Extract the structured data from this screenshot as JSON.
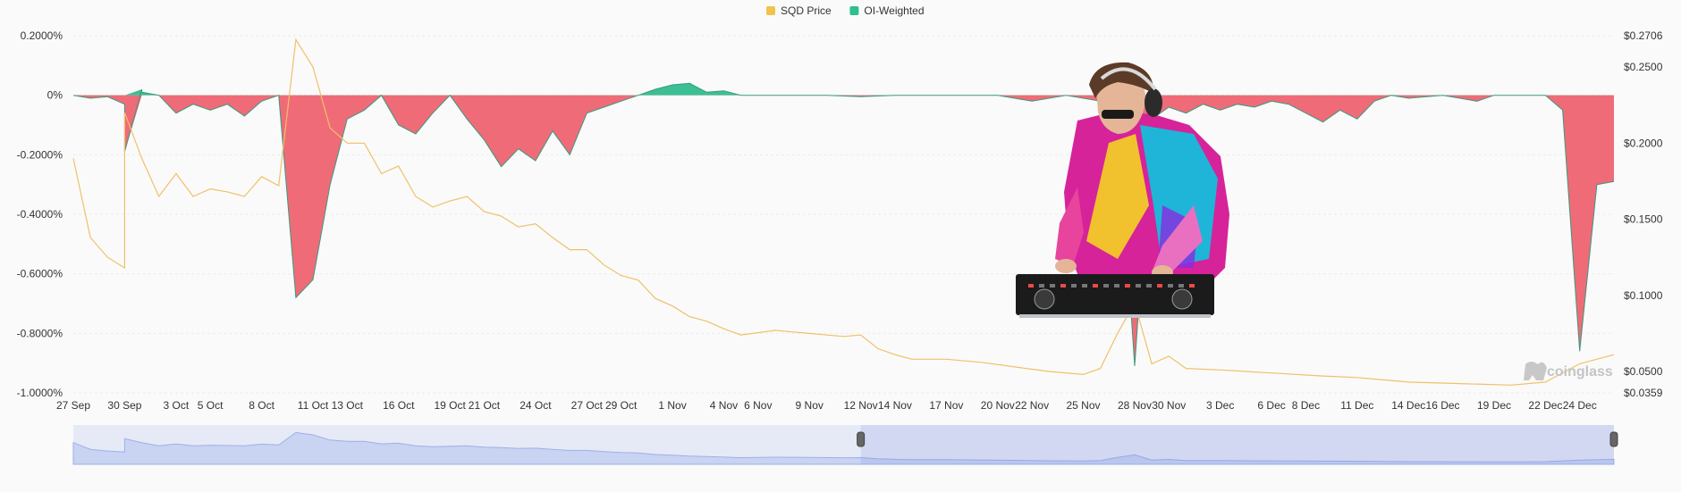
{
  "chart_data": {
    "type": "line",
    "legend": {
      "position": "top-center",
      "items": [
        {
          "label": "SQD Price",
          "color": "#f0c34d",
          "kind": "line"
        },
        {
          "label": "OI-Weighted",
          "color": "#2fbf8f",
          "kind": "area"
        }
      ]
    },
    "negative_color": "#f06b78",
    "positive_color": "#3cbf94",
    "price_color": "#efc16a",
    "y_left": {
      "ticks": [
        0.2,
        0,
        -0.2,
        -0.4,
        -0.6,
        -0.8,
        -1.0
      ],
      "tick_labels": [
        "0.2000%",
        "0%",
        "-0.2000%",
        "-0.4000%",
        "-0.6000%",
        "-0.8000%",
        "-1.0000%"
      ],
      "min": -1.0,
      "max": 0.2
    },
    "y_right": {
      "ticks": [
        0.2706,
        0.25,
        0.2,
        0.15,
        0.1,
        0.05,
        0.0359
      ],
      "tick_labels": [
        "$0.2706",
        "$0.2500",
        "$0.2000",
        "$0.1500",
        "$0.1000",
        "$0.0500",
        "$0.0359"
      ],
      "min": 0.0359,
      "max": 0.2706
    },
    "x": {
      "start": "2024-09-27",
      "end": "2024-12-26",
      "tick_dates": [
        "2024-09-27",
        "2024-09-30",
        "2024-10-03",
        "2024-10-05",
        "2024-10-08",
        "2024-10-11",
        "2024-10-13",
        "2024-10-16",
        "2024-10-19",
        "2024-10-21",
        "2024-10-24",
        "2024-10-27",
        "2024-10-29",
        "2024-11-01",
        "2024-11-04",
        "2024-11-06",
        "2024-11-09",
        "2024-11-12",
        "2024-11-14",
        "2024-11-17",
        "2024-11-20",
        "2024-11-22",
        "2024-11-25",
        "2024-11-28",
        "2024-11-30",
        "2024-12-03",
        "2024-12-06",
        "2024-12-08",
        "2024-12-11",
        "2024-12-14",
        "2024-12-16",
        "2024-12-19",
        "2024-12-22",
        "2024-12-24"
      ],
      "tick_labels": [
        "27 Sep",
        "30 Sep",
        "3 Oct",
        "5 Oct",
        "8 Oct",
        "11 Oct",
        "13 Oct",
        "16 Oct",
        "19 Oct",
        "21 Oct",
        "24 Oct",
        "27 Oct",
        "29 Oct",
        "1 Nov",
        "4 Nov",
        "6 Nov",
        "9 Nov",
        "12 Nov",
        "14 Nov",
        "17 Nov",
        "20 Nov",
        "22 Nov",
        "25 Nov",
        "28 Nov",
        "30 Nov",
        "3 Dec",
        "6 Dec",
        "8 Dec",
        "11 Dec",
        "14 Dec",
        "16 Dec",
        "19 Dec",
        "22 Dec",
        "24 Dec"
      ]
    },
    "series": [
      {
        "name": "OI-Weighted",
        "points": [
          [
            "2024-09-27",
            0
          ],
          [
            "2024-09-28",
            -0.01
          ],
          [
            "2024-09-29",
            -0.005
          ],
          [
            "2024-09-30",
            -0.03
          ],
          [
            "2024-09-30",
            -0.19
          ],
          [
            "2024-10-01",
            0.02
          ],
          [
            "2024-10-01",
            0.01
          ],
          [
            "2024-10-02",
            0
          ],
          [
            "2024-10-03",
            -0.06
          ],
          [
            "2024-10-04",
            -0.03
          ],
          [
            "2024-10-05",
            -0.05
          ],
          [
            "2024-10-06",
            -0.03
          ],
          [
            "2024-10-07",
            -0.07
          ],
          [
            "2024-10-08",
            -0.02
          ],
          [
            "2024-10-09",
            0
          ],
          [
            "2024-10-10",
            -0.68
          ],
          [
            "2024-10-11",
            -0.62
          ],
          [
            "2024-10-12",
            -0.3
          ],
          [
            "2024-10-13",
            -0.08
          ],
          [
            "2024-10-14",
            -0.05
          ],
          [
            "2024-10-15",
            0
          ],
          [
            "2024-10-16",
            -0.1
          ],
          [
            "2024-10-17",
            -0.13
          ],
          [
            "2024-10-18",
            -0.06
          ],
          [
            "2024-10-19",
            0
          ],
          [
            "2024-10-20",
            -0.08
          ],
          [
            "2024-10-21",
            -0.15
          ],
          [
            "2024-10-22",
            -0.24
          ],
          [
            "2024-10-23",
            -0.18
          ],
          [
            "2024-10-24",
            -0.22
          ],
          [
            "2024-10-25",
            -0.12
          ],
          [
            "2024-10-26",
            -0.2
          ],
          [
            "2024-10-27",
            -0.06
          ],
          [
            "2024-10-28",
            -0.04
          ],
          [
            "2024-10-29",
            -0.02
          ],
          [
            "2024-10-30",
            0
          ],
          [
            "2024-10-31",
            0.02
          ],
          [
            "2024-11-01",
            0.035
          ],
          [
            "2024-11-02",
            0.04
          ],
          [
            "2024-11-03",
            0.01
          ],
          [
            "2024-11-04",
            0.015
          ],
          [
            "2024-11-05",
            0
          ],
          [
            "2024-11-10",
            0
          ],
          [
            "2024-11-12",
            -0.005
          ],
          [
            "2024-11-14",
            0
          ],
          [
            "2024-11-20",
            0
          ],
          [
            "2024-11-22",
            -0.02
          ],
          [
            "2024-11-24",
            0
          ],
          [
            "2024-11-26",
            -0.02
          ],
          [
            "2024-11-27",
            -0.05
          ],
          [
            "2024-11-28",
            -0.91
          ],
          [
            "2024-11-29",
            -0.08
          ],
          [
            "2024-11-30",
            -0.04
          ],
          [
            "2024-12-01",
            -0.06
          ],
          [
            "2024-12-02",
            -0.03
          ],
          [
            "2024-12-03",
            -0.05
          ],
          [
            "2024-12-04",
            -0.03
          ],
          [
            "2024-12-05",
            -0.04
          ],
          [
            "2024-12-06",
            -0.02
          ],
          [
            "2024-12-07",
            -0.03
          ],
          [
            "2024-12-08",
            -0.06
          ],
          [
            "2024-12-09",
            -0.09
          ],
          [
            "2024-12-10",
            -0.05
          ],
          [
            "2024-12-11",
            -0.08
          ],
          [
            "2024-12-12",
            -0.02
          ],
          [
            "2024-12-13",
            0
          ],
          [
            "2024-12-14",
            -0.01
          ],
          [
            "2024-12-16",
            0
          ],
          [
            "2024-12-17",
            -0.01
          ],
          [
            "2024-12-18",
            -0.02
          ],
          [
            "2024-12-19",
            0
          ],
          [
            "2024-12-22",
            0
          ],
          [
            "2024-12-23",
            -0.05
          ],
          [
            "2024-12-24",
            -0.86
          ],
          [
            "2024-12-25",
            -0.3
          ],
          [
            "2024-12-26",
            -0.29
          ]
        ]
      },
      {
        "name": "SQD Price",
        "axis": "right",
        "points": [
          [
            "2024-09-27",
            0.19
          ],
          [
            "2024-09-28",
            0.138
          ],
          [
            "2024-09-29",
            0.125
          ],
          [
            "2024-09-30",
            0.118
          ],
          [
            "2024-09-30",
            0.22
          ],
          [
            "2024-10-01",
            0.19
          ],
          [
            "2024-10-02",
            0.165
          ],
          [
            "2024-10-03",
            0.18
          ],
          [
            "2024-10-04",
            0.165
          ],
          [
            "2024-10-05",
            0.17
          ],
          [
            "2024-10-06",
            0.168
          ],
          [
            "2024-10-07",
            0.165
          ],
          [
            "2024-10-08",
            0.178
          ],
          [
            "2024-10-09",
            0.172
          ],
          [
            "2024-10-10",
            0.268
          ],
          [
            "2024-10-11",
            0.25
          ],
          [
            "2024-10-12",
            0.21
          ],
          [
            "2024-10-13",
            0.2
          ],
          [
            "2024-10-14",
            0.2
          ],
          [
            "2024-10-15",
            0.18
          ],
          [
            "2024-10-16",
            0.185
          ],
          [
            "2024-10-17",
            0.165
          ],
          [
            "2024-10-18",
            0.158
          ],
          [
            "2024-10-19",
            0.162
          ],
          [
            "2024-10-20",
            0.165
          ],
          [
            "2024-10-21",
            0.155
          ],
          [
            "2024-10-22",
            0.152
          ],
          [
            "2024-10-23",
            0.145
          ],
          [
            "2024-10-24",
            0.147
          ],
          [
            "2024-10-25",
            0.138
          ],
          [
            "2024-10-26",
            0.13
          ],
          [
            "2024-10-27",
            0.13
          ],
          [
            "2024-10-28",
            0.12
          ],
          [
            "2024-10-29",
            0.113
          ],
          [
            "2024-10-30",
            0.11
          ],
          [
            "2024-10-31",
            0.098
          ],
          [
            "2024-11-01",
            0.093
          ],
          [
            "2024-11-02",
            0.086
          ],
          [
            "2024-11-03",
            0.083
          ],
          [
            "2024-11-04",
            0.078
          ],
          [
            "2024-11-05",
            0.074
          ],
          [
            "2024-11-07",
            0.077
          ],
          [
            "2024-11-09",
            0.075
          ],
          [
            "2024-11-11",
            0.073
          ],
          [
            "2024-11-12",
            0.074
          ],
          [
            "2024-11-13",
            0.065
          ],
          [
            "2024-11-14",
            0.061
          ],
          [
            "2024-11-15",
            0.058
          ],
          [
            "2024-11-17",
            0.058
          ],
          [
            "2024-11-19",
            0.056
          ],
          [
            "2024-11-21",
            0.053
          ],
          [
            "2024-11-23",
            0.05
          ],
          [
            "2024-11-25",
            0.048
          ],
          [
            "2024-11-26",
            0.052
          ],
          [
            "2024-11-27",
            0.075
          ],
          [
            "2024-11-28",
            0.095
          ],
          [
            "2024-11-29",
            0.055
          ],
          [
            "2024-11-30",
            0.06
          ],
          [
            "2024-12-01",
            0.052
          ],
          [
            "2024-12-03",
            0.051
          ],
          [
            "2024-12-06",
            0.049
          ],
          [
            "2024-12-09",
            0.047
          ],
          [
            "2024-12-11",
            0.046
          ],
          [
            "2024-12-14",
            0.043
          ],
          [
            "2024-12-17",
            0.042
          ],
          [
            "2024-12-20",
            0.041
          ],
          [
            "2024-12-22",
            0.043
          ],
          [
            "2024-12-24",
            0.055
          ],
          [
            "2024-12-26",
            0.061
          ]
        ]
      }
    ],
    "navigator": {
      "selected_start": "2024-11-12",
      "selected_end": "2024-12-26"
    },
    "watermark": "coinglass"
  }
}
